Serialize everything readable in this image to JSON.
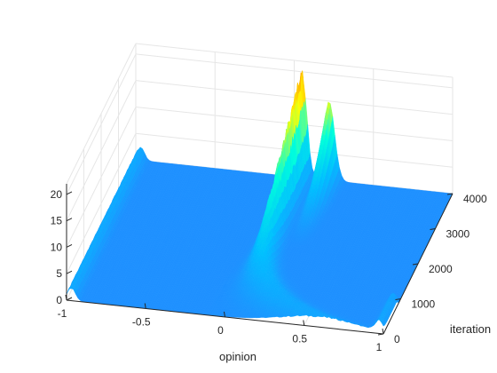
{
  "chart_data": {
    "type": "surface",
    "title": "",
    "xlabel": "opinion",
    "ylabel": "iteration",
    "zlabel": "",
    "xlim": [
      -1,
      1
    ],
    "ylim": [
      0,
      4000
    ],
    "zlim": [
      0,
      22
    ],
    "x_ticks": [
      "-1",
      "-0.5",
      "0",
      "0.5",
      "1"
    ],
    "y_ticks": [
      "0",
      "1000",
      "2000",
      "3000",
      "4000"
    ],
    "z_ticks": [
      "0",
      "5",
      "10",
      "15",
      "20"
    ],
    "grid": true,
    "colormap": "jet",
    "colors": {
      "baseline": "#1e90ff",
      "low": "#00bfff",
      "mid": "#ffff00",
      "high": "#ff8c00"
    },
    "features": [
      {
        "name": "edge-ridge",
        "opinion": -0.97,
        "iterations": [
          0,
          4000
        ],
        "height": 2.5
      },
      {
        "name": "central-peak",
        "opinion": 0.05,
        "iterations": [
          0,
          4000
        ],
        "peak_height": 20,
        "peak_iteration": 4000,
        "start_opinion": 0.6
      },
      {
        "name": "secondary-ridge",
        "opinion": 0.22,
        "iterations": [
          2000,
          4000
        ],
        "peak_height": 15
      },
      {
        "name": "right-edge-ridge",
        "opinion": 0.97,
        "iterations": [
          0,
          900
        ],
        "height": 2
      }
    ]
  }
}
